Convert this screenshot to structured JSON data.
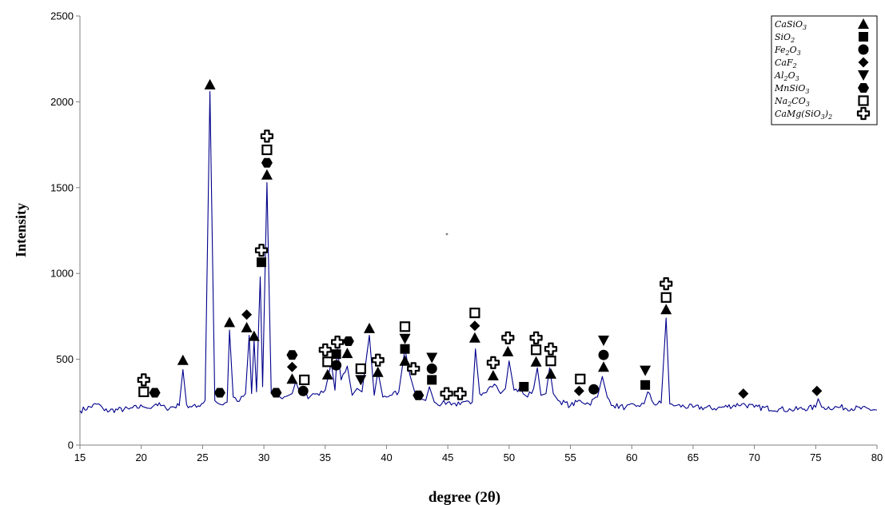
{
  "chart_data": {
    "type": "line",
    "title": "",
    "xlabel": "degree (2θ)",
    "ylabel": "Intensity",
    "xlim": [
      15,
      80
    ],
    "ylim": [
      0,
      2500
    ],
    "xticks": [
      15,
      20,
      25,
      30,
      35,
      40,
      45,
      50,
      55,
      60,
      65,
      70,
      75,
      80
    ],
    "yticks": [
      0,
      500,
      1000,
      1500,
      2000,
      2500
    ],
    "grid": false,
    "legend_position": "top-right",
    "line_color": "#00008B",
    "series": [
      {
        "x": [
          15,
          16.5,
          17,
          19,
          20.1,
          20.5,
          21.2,
          22,
          23.1,
          23.4,
          23.7,
          24.5,
          25.2,
          25.6,
          26.0,
          26.5,
          27.0,
          27.2,
          27.5,
          28.0,
          28.5,
          28.8,
          29.0,
          29.2,
          29.4,
          29.7,
          29.9,
          30.25,
          30.6,
          31.0,
          31.5,
          32.0,
          32.3,
          32.6,
          33.0,
          33.3,
          33.6,
          34.0,
          34.5,
          35.0,
          35.5,
          35.8,
          36.0,
          36.3,
          36.8,
          37.2,
          37.6,
          38.0,
          38.6,
          39.0,
          39.3,
          39.7,
          40.3,
          41.0,
          41.5,
          41.9,
          42.3,
          42.8,
          43.2,
          43.5,
          43.9,
          44.5,
          45.0,
          46.0,
          47.0,
          47.25,
          47.6,
          48.3,
          48.8,
          49.3,
          49.7,
          50.0,
          50.4,
          51.0,
          51.5,
          52.0,
          52.3,
          52.6,
          53.0,
          53.3,
          53.6,
          54.0,
          55.0,
          55.8,
          56.5,
          57.2,
          57.6,
          58.0,
          58.5,
          59.5,
          60.5,
          61.0,
          61.3,
          61.8,
          62.4,
          62.8,
          63.1,
          63.6,
          65.0,
          67.0,
          69.0,
          70.0,
          72.0,
          73.0,
          75.0,
          75.2,
          75.5,
          77.0,
          80
        ],
        "y": [
          200,
          240,
          200,
          210,
          225,
          215,
          240,
          215,
          230,
          440,
          235,
          220,
          260,
          2060,
          260,
          235,
          250,
          670,
          280,
          255,
          300,
          640,
          300,
          610,
          310,
          980,
          340,
          1530,
          300,
          280,
          270,
          290,
          300,
          370,
          290,
          340,
          270,
          300,
          290,
          320,
          480,
          320,
          560,
          380,
          460,
          290,
          330,
          310,
          640,
          290,
          430,
          280,
          290,
          310,
          560,
          410,
          310,
          270,
          260,
          340,
          250,
          240,
          250,
          235,
          250,
          560,
          300,
          330,
          355,
          300,
          330,
          490,
          320,
          320,
          280,
          330,
          450,
          290,
          300,
          450,
          300,
          260,
          230,
          260,
          240,
          280,
          400,
          280,
          230,
          220,
          230,
          240,
          310,
          240,
          245,
          740,
          240,
          230,
          220,
          215,
          240,
          220,
          210,
          205,
          220,
          270,
          220,
          220,
          205
        ]
      }
    ],
    "legend": [
      {
        "label": "CaSiO",
        "sub": "3",
        "marker": "triangle-up"
      },
      {
        "label": "SiO",
        "sub": "2",
        "marker": "square-filled"
      },
      {
        "label": "Fe",
        "sub": "2",
        "label2": "O",
        "sub2": "3",
        "marker": "circle"
      },
      {
        "label": "CaF",
        "sub": "2",
        "marker": "diamond"
      },
      {
        "label": "Al",
        "sub": "2",
        "label2": "O",
        "sub2": "3",
        "marker": "triangle-down"
      },
      {
        "label": "MnSiO",
        "sub": "3",
        "marker": "hexagon"
      },
      {
        "label": "Na",
        "sub": "2",
        "label2": "CO",
        "sub2": "3",
        "marker": "square-open"
      },
      {
        "label": "CaMg(SiO",
        "sub": "3",
        "label2": ")",
        "sub2": "2",
        "marker": "cross-open"
      }
    ],
    "peak_markers": [
      {
        "x": 20.2,
        "y": 310,
        "marker": "square-open"
      },
      {
        "x": 20.2,
        "y": 380,
        "marker": "cross-open"
      },
      {
        "x": 21.1,
        "y": 305,
        "marker": "hexagon"
      },
      {
        "x": 23.4,
        "y": 495,
        "marker": "triangle-up"
      },
      {
        "x": 25.6,
        "y": 2100,
        "marker": "triangle-up"
      },
      {
        "x": 26.4,
        "y": 305,
        "marker": "hexagon"
      },
      {
        "x": 27.2,
        "y": 715,
        "marker": "triangle-up"
      },
      {
        "x": 28.6,
        "y": 685,
        "marker": "triangle-up"
      },
      {
        "x": 28.6,
        "y": 760,
        "marker": "diamond"
      },
      {
        "x": 29.2,
        "y": 635,
        "marker": "triangle-up"
      },
      {
        "x": 29.8,
        "y": 1065,
        "marker": "square-filled"
      },
      {
        "x": 29.8,
        "y": 1135,
        "marker": "cross-open"
      },
      {
        "x": 30.25,
        "y": 1575,
        "marker": "triangle-up"
      },
      {
        "x": 30.25,
        "y": 1645,
        "marker": "hexagon"
      },
      {
        "x": 30.25,
        "y": 1720,
        "marker": "square-open"
      },
      {
        "x": 30.25,
        "y": 1800,
        "marker": "cross-open"
      },
      {
        "x": 31.0,
        "y": 305,
        "marker": "hexagon"
      },
      {
        "x": 32.3,
        "y": 385,
        "marker": "triangle-up"
      },
      {
        "x": 32.3,
        "y": 455,
        "marker": "diamond"
      },
      {
        "x": 32.3,
        "y": 525,
        "marker": "hexagon"
      },
      {
        "x": 33.2,
        "y": 315,
        "marker": "circle"
      },
      {
        "x": 33.3,
        "y": 380,
        "marker": "square-open"
      },
      {
        "x": 35.2,
        "y": 410,
        "marker": "triangle-up"
      },
      {
        "x": 35.2,
        "y": 485,
        "marker": "square-open"
      },
      {
        "x": 35.0,
        "y": 555,
        "marker": "cross-open"
      },
      {
        "x": 35.9,
        "y": 465,
        "marker": "circle"
      },
      {
        "x": 35.9,
        "y": 530,
        "marker": "square-filled"
      },
      {
        "x": 36.0,
        "y": 600,
        "marker": "cross-open"
      },
      {
        "x": 36.8,
        "y": 535,
        "marker": "triangle-up"
      },
      {
        "x": 36.9,
        "y": 605,
        "marker": "hexagon"
      },
      {
        "x": 37.9,
        "y": 380,
        "marker": "triangle-down"
      },
      {
        "x": 37.9,
        "y": 445,
        "marker": "square-open"
      },
      {
        "x": 38.6,
        "y": 680,
        "marker": "triangle-up"
      },
      {
        "x": 39.3,
        "y": 425,
        "marker": "triangle-up"
      },
      {
        "x": 39.3,
        "y": 495,
        "marker": "cross-open"
      },
      {
        "x": 41.5,
        "y": 490,
        "marker": "triangle-up"
      },
      {
        "x": 41.5,
        "y": 560,
        "marker": "square-filled"
      },
      {
        "x": 41.5,
        "y": 620,
        "marker": "triangle-down"
      },
      {
        "x": 41.5,
        "y": 690,
        "marker": "square-open"
      },
      {
        "x": 42.2,
        "y": 445,
        "marker": "cross-open"
      },
      {
        "x": 42.6,
        "y": 290,
        "marker": "hexagon"
      },
      {
        "x": 43.7,
        "y": 380,
        "marker": "square-filled"
      },
      {
        "x": 43.7,
        "y": 445,
        "marker": "circle"
      },
      {
        "x": 43.7,
        "y": 510,
        "marker": "triangle-down"
      },
      {
        "x": 44.9,
        "y": 300,
        "marker": "cross-open"
      },
      {
        "x": 46.0,
        "y": 300,
        "marker": "cross-open"
      },
      {
        "x": 47.2,
        "y": 625,
        "marker": "triangle-up"
      },
      {
        "x": 47.2,
        "y": 695,
        "marker": "diamond"
      },
      {
        "x": 47.2,
        "y": 770,
        "marker": "square-open"
      },
      {
        "x": 48.7,
        "y": 405,
        "marker": "triangle-up"
      },
      {
        "x": 48.7,
        "y": 480,
        "marker": "cross-open"
      },
      {
        "x": 49.9,
        "y": 545,
        "marker": "triangle-up"
      },
      {
        "x": 49.9,
        "y": 625,
        "marker": "cross-open"
      },
      {
        "x": 51.2,
        "y": 340,
        "marker": "square-filled"
      },
      {
        "x": 52.2,
        "y": 485,
        "marker": "triangle-up"
      },
      {
        "x": 52.2,
        "y": 555,
        "marker": "square-open"
      },
      {
        "x": 52.2,
        "y": 625,
        "marker": "cross-open"
      },
      {
        "x": 53.4,
        "y": 415,
        "marker": "triangle-up"
      },
      {
        "x": 53.4,
        "y": 490,
        "marker": "square-open"
      },
      {
        "x": 53.4,
        "y": 560,
        "marker": "cross-open"
      },
      {
        "x": 55.7,
        "y": 315,
        "marker": "diamond"
      },
      {
        "x": 55.8,
        "y": 385,
        "marker": "square-open"
      },
      {
        "x": 56.9,
        "y": 325,
        "marker": "circle"
      },
      {
        "x": 57.7,
        "y": 455,
        "marker": "triangle-up"
      },
      {
        "x": 57.7,
        "y": 525,
        "marker": "circle"
      },
      {
        "x": 57.7,
        "y": 610,
        "marker": "triangle-down"
      },
      {
        "x": 61.1,
        "y": 350,
        "marker": "square-filled"
      },
      {
        "x": 61.1,
        "y": 435,
        "marker": "triangle-down"
      },
      {
        "x": 62.8,
        "y": 790,
        "marker": "triangle-up"
      },
      {
        "x": 62.8,
        "y": 860,
        "marker": "square-open"
      },
      {
        "x": 62.8,
        "y": 940,
        "marker": "cross-open"
      },
      {
        "x": 69.1,
        "y": 300,
        "marker": "diamond"
      },
      {
        "x": 75.1,
        "y": 315,
        "marker": "diamond"
      }
    ]
  }
}
